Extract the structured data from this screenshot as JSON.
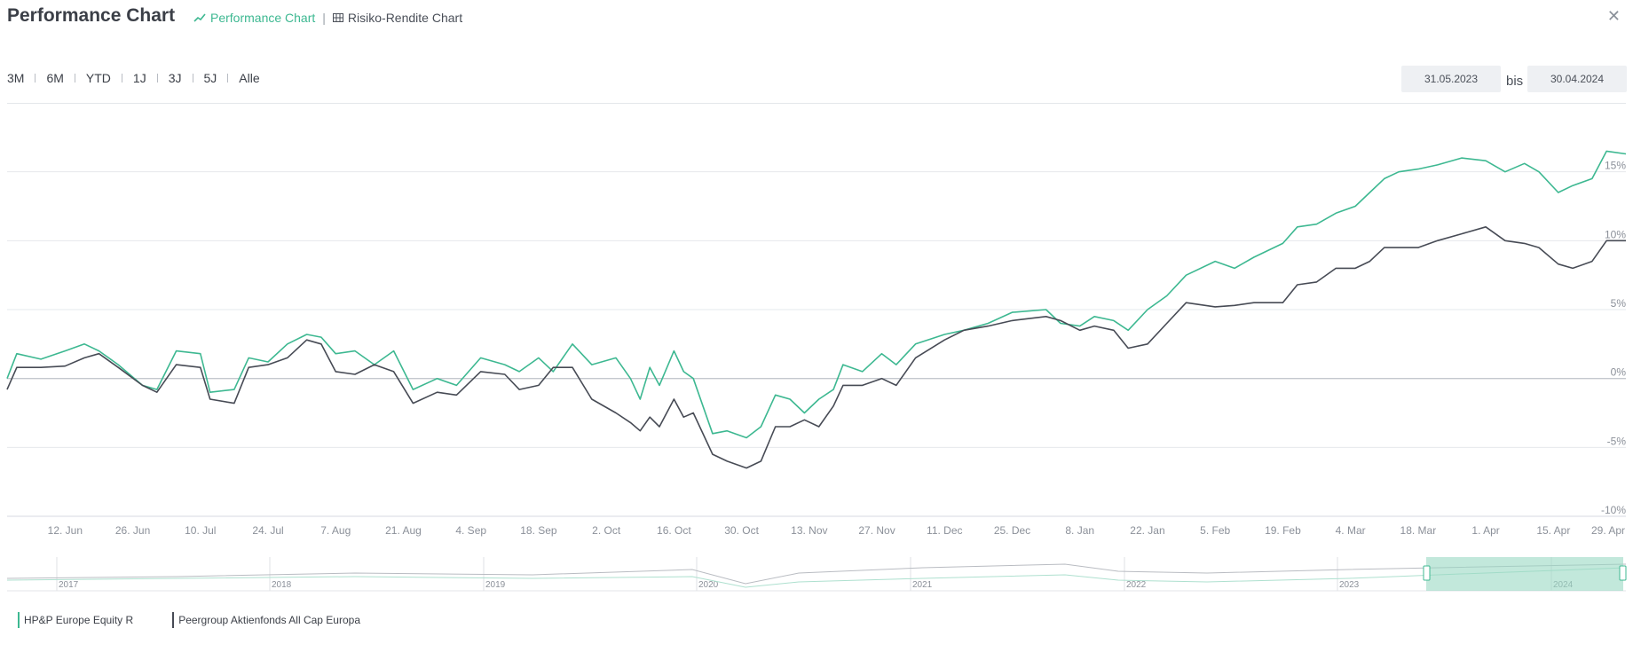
{
  "header": {
    "title": "Performance Chart",
    "tabs": [
      {
        "label": "Performance Chart",
        "icon": "line-chart-icon",
        "active": true
      },
      {
        "label": "Risiko-Rendite Chart",
        "icon": "grid-icon",
        "active": false
      }
    ],
    "close_icon": "close-icon"
  },
  "ranges": [
    "3M",
    "6M",
    "YTD",
    "1J",
    "3J",
    "5J",
    "Alle"
  ],
  "date_range": {
    "from": "31.05.2023",
    "separator": "bis",
    "to": "30.04.2024"
  },
  "colors": {
    "fund": "#3db891",
    "peer": "#474b55",
    "navigator_fill": "#9ad9c3"
  },
  "chart_data": {
    "type": "line",
    "x_tick_labels": [
      "12. Jun",
      "26. Jun",
      "10. Jul",
      "24. Jul",
      "7. Aug",
      "21. Aug",
      "4. Sep",
      "18. Sep",
      "2. Oct",
      "16. Oct",
      "30. Oct",
      "13. Nov",
      "27. Nov",
      "11. Dec",
      "25. Dec",
      "8. Jan",
      "22. Jan",
      "5. Feb",
      "19. Feb",
      "4. Mar",
      "18. Mar",
      "1. Apr",
      "15. Apr",
      "29. Apr"
    ],
    "y_tick_labels": [
      "15%",
      "10%",
      "5%",
      "0%",
      "-5%",
      "-10%"
    ],
    "x_range": [
      "2023-05-31",
      "2024-04-30"
    ],
    "ylim": [
      -10,
      20
    ],
    "grid": true,
    "legend_position": "bottom-left",
    "series": [
      {
        "name": "HP&P Europe Equity R",
        "color": "#3db891",
        "points": [
          [
            "2023-05-31",
            0.0
          ],
          [
            "2023-06-02",
            1.8
          ],
          [
            "2023-06-07",
            1.4
          ],
          [
            "2023-06-12",
            2.0
          ],
          [
            "2023-06-16",
            2.5
          ],
          [
            "2023-06-19",
            2.0
          ],
          [
            "2023-06-23",
            1.0
          ],
          [
            "2023-06-28",
            -0.5
          ],
          [
            "2023-07-01",
            -0.8
          ],
          [
            "2023-07-05",
            2.0
          ],
          [
            "2023-07-10",
            1.8
          ],
          [
            "2023-07-12",
            -1.0
          ],
          [
            "2023-07-17",
            -0.8
          ],
          [
            "2023-07-20",
            1.5
          ],
          [
            "2023-07-24",
            1.2
          ],
          [
            "2023-07-28",
            2.5
          ],
          [
            "2023-08-01",
            3.2
          ],
          [
            "2023-08-04",
            3.0
          ],
          [
            "2023-08-07",
            1.8
          ],
          [
            "2023-08-11",
            2.0
          ],
          [
            "2023-08-15",
            1.0
          ],
          [
            "2023-08-19",
            2.0
          ],
          [
            "2023-08-23",
            -0.8
          ],
          [
            "2023-08-28",
            0.0
          ],
          [
            "2023-09-01",
            -0.5
          ],
          [
            "2023-09-06",
            1.5
          ],
          [
            "2023-09-11",
            1.0
          ],
          [
            "2023-09-14",
            0.5
          ],
          [
            "2023-09-18",
            1.5
          ],
          [
            "2023-09-21",
            0.5
          ],
          [
            "2023-09-25",
            2.5
          ],
          [
            "2023-09-29",
            1.0
          ],
          [
            "2023-10-04",
            1.5
          ],
          [
            "2023-10-07",
            0.0
          ],
          [
            "2023-10-09",
            -1.5
          ],
          [
            "2023-10-11",
            0.8
          ],
          [
            "2023-10-13",
            -0.5
          ],
          [
            "2023-10-16",
            2.0
          ],
          [
            "2023-10-18",
            0.5
          ],
          [
            "2023-10-20",
            0.0
          ],
          [
            "2023-10-24",
            -4.0
          ],
          [
            "2023-10-27",
            -3.8
          ],
          [
            "2023-10-31",
            -4.3
          ],
          [
            "2023-11-03",
            -3.5
          ],
          [
            "2023-11-06",
            -1.2
          ],
          [
            "2023-11-09",
            -1.5
          ],
          [
            "2023-11-12",
            -2.5
          ],
          [
            "2023-11-15",
            -1.5
          ],
          [
            "2023-11-18",
            -0.8
          ],
          [
            "2023-11-20",
            1.0
          ],
          [
            "2023-11-24",
            0.5
          ],
          [
            "2023-11-28",
            1.8
          ],
          [
            "2023-12-01",
            1.0
          ],
          [
            "2023-12-05",
            2.5
          ],
          [
            "2023-12-11",
            3.2
          ],
          [
            "2023-12-15",
            3.5
          ],
          [
            "2023-12-20",
            4.0
          ],
          [
            "2023-12-25",
            4.8
          ],
          [
            "2024-01-01",
            5.0
          ],
          [
            "2024-01-04",
            4.0
          ],
          [
            "2024-01-08",
            3.8
          ],
          [
            "2024-01-11",
            4.5
          ],
          [
            "2024-01-15",
            4.2
          ],
          [
            "2024-01-18",
            3.5
          ],
          [
            "2024-01-22",
            5.0
          ],
          [
            "2024-01-26",
            6.0
          ],
          [
            "2024-01-30",
            7.5
          ],
          [
            "2024-02-05",
            8.5
          ],
          [
            "2024-02-09",
            8.0
          ],
          [
            "2024-02-13",
            8.8
          ],
          [
            "2024-02-19",
            9.8
          ],
          [
            "2024-02-22",
            11.0
          ],
          [
            "2024-02-26",
            11.2
          ],
          [
            "2024-03-01",
            12.0
          ],
          [
            "2024-03-05",
            12.5
          ],
          [
            "2024-03-08",
            13.5
          ],
          [
            "2024-03-11",
            14.5
          ],
          [
            "2024-03-14",
            15.0
          ],
          [
            "2024-03-18",
            15.2
          ],
          [
            "2024-03-22",
            15.5
          ],
          [
            "2024-03-27",
            16.0
          ],
          [
            "2024-04-01",
            15.8
          ],
          [
            "2024-04-05",
            15.0
          ],
          [
            "2024-04-09",
            15.6
          ],
          [
            "2024-04-12",
            15.0
          ],
          [
            "2024-04-16",
            13.5
          ],
          [
            "2024-04-19",
            14.0
          ],
          [
            "2024-04-23",
            14.5
          ],
          [
            "2024-04-26",
            16.5
          ],
          [
            "2024-04-30",
            16.3
          ]
        ]
      },
      {
        "name": "Peergroup Aktienfonds All Cap Europa",
        "color": "#474b55",
        "points": [
          [
            "2023-05-31",
            -0.8
          ],
          [
            "2023-06-02",
            0.8
          ],
          [
            "2023-06-07",
            0.8
          ],
          [
            "2023-06-12",
            0.9
          ],
          [
            "2023-06-16",
            1.5
          ],
          [
            "2023-06-19",
            1.8
          ],
          [
            "2023-06-23",
            0.8
          ],
          [
            "2023-06-28",
            -0.5
          ],
          [
            "2023-07-01",
            -1.0
          ],
          [
            "2023-07-05",
            1.0
          ],
          [
            "2023-07-10",
            0.8
          ],
          [
            "2023-07-12",
            -1.5
          ],
          [
            "2023-07-17",
            -1.8
          ],
          [
            "2023-07-20",
            0.8
          ],
          [
            "2023-07-24",
            1.0
          ],
          [
            "2023-07-28",
            1.5
          ],
          [
            "2023-08-01",
            2.8
          ],
          [
            "2023-08-04",
            2.5
          ],
          [
            "2023-08-07",
            0.5
          ],
          [
            "2023-08-11",
            0.3
          ],
          [
            "2023-08-15",
            1.0
          ],
          [
            "2023-08-19",
            0.5
          ],
          [
            "2023-08-23",
            -1.8
          ],
          [
            "2023-08-28",
            -1.0
          ],
          [
            "2023-09-01",
            -1.2
          ],
          [
            "2023-09-06",
            0.5
          ],
          [
            "2023-09-11",
            0.3
          ],
          [
            "2023-09-14",
            -0.8
          ],
          [
            "2023-09-18",
            -0.5
          ],
          [
            "2023-09-21",
            0.8
          ],
          [
            "2023-09-25",
            0.8
          ],
          [
            "2023-09-29",
            -1.5
          ],
          [
            "2023-10-04",
            -2.5
          ],
          [
            "2023-10-07",
            -3.2
          ],
          [
            "2023-10-09",
            -3.8
          ],
          [
            "2023-10-11",
            -2.8
          ],
          [
            "2023-10-13",
            -3.5
          ],
          [
            "2023-10-16",
            -1.5
          ],
          [
            "2023-10-18",
            -2.8
          ],
          [
            "2023-10-20",
            -2.5
          ],
          [
            "2023-10-24",
            -5.5
          ],
          [
            "2023-10-27",
            -6.0
          ],
          [
            "2023-10-31",
            -6.5
          ],
          [
            "2023-11-03",
            -6.0
          ],
          [
            "2023-11-06",
            -3.5
          ],
          [
            "2023-11-09",
            -3.5
          ],
          [
            "2023-11-12",
            -3.0
          ],
          [
            "2023-11-15",
            -3.5
          ],
          [
            "2023-11-18",
            -2.0
          ],
          [
            "2023-11-20",
            -0.5
          ],
          [
            "2023-11-24",
            -0.5
          ],
          [
            "2023-11-28",
            0.0
          ],
          [
            "2023-12-01",
            -0.5
          ],
          [
            "2023-12-05",
            1.5
          ],
          [
            "2023-12-11",
            2.8
          ],
          [
            "2023-12-15",
            3.5
          ],
          [
            "2023-12-20",
            3.8
          ],
          [
            "2023-12-25",
            4.2
          ],
          [
            "2024-01-01",
            4.5
          ],
          [
            "2024-01-04",
            4.2
          ],
          [
            "2024-01-08",
            3.5
          ],
          [
            "2024-01-11",
            3.8
          ],
          [
            "2024-01-15",
            3.5
          ],
          [
            "2024-01-18",
            2.2
          ],
          [
            "2024-01-22",
            2.5
          ],
          [
            "2024-01-26",
            4.0
          ],
          [
            "2024-01-30",
            5.5
          ],
          [
            "2024-02-05",
            5.2
          ],
          [
            "2024-02-09",
            5.3
          ],
          [
            "2024-02-13",
            5.5
          ],
          [
            "2024-02-19",
            5.5
          ],
          [
            "2024-02-22",
            6.8
          ],
          [
            "2024-02-26",
            7.0
          ],
          [
            "2024-03-01",
            8.0
          ],
          [
            "2024-03-05",
            8.0
          ],
          [
            "2024-03-08",
            8.5
          ],
          [
            "2024-03-11",
            9.5
          ],
          [
            "2024-03-14",
            9.5
          ],
          [
            "2024-03-18",
            9.5
          ],
          [
            "2024-03-22",
            10.0
          ],
          [
            "2024-03-27",
            10.5
          ],
          [
            "2024-04-01",
            11.0
          ],
          [
            "2024-04-05",
            10.0
          ],
          [
            "2024-04-09",
            9.8
          ],
          [
            "2024-04-12",
            9.5
          ],
          [
            "2024-04-16",
            8.3
          ],
          [
            "2024-04-19",
            8.0
          ],
          [
            "2024-04-23",
            8.5
          ],
          [
            "2024-04-26",
            10.0
          ],
          [
            "2024-04-30",
            10.0
          ]
        ]
      }
    ],
    "navigator": {
      "year_labels": [
        "2017",
        "2018",
        "2019",
        "2020",
        "2021",
        "2022",
        "2023",
        "2024"
      ],
      "selected_range": [
        "31.05.2023",
        "30.04.2024"
      ]
    }
  }
}
